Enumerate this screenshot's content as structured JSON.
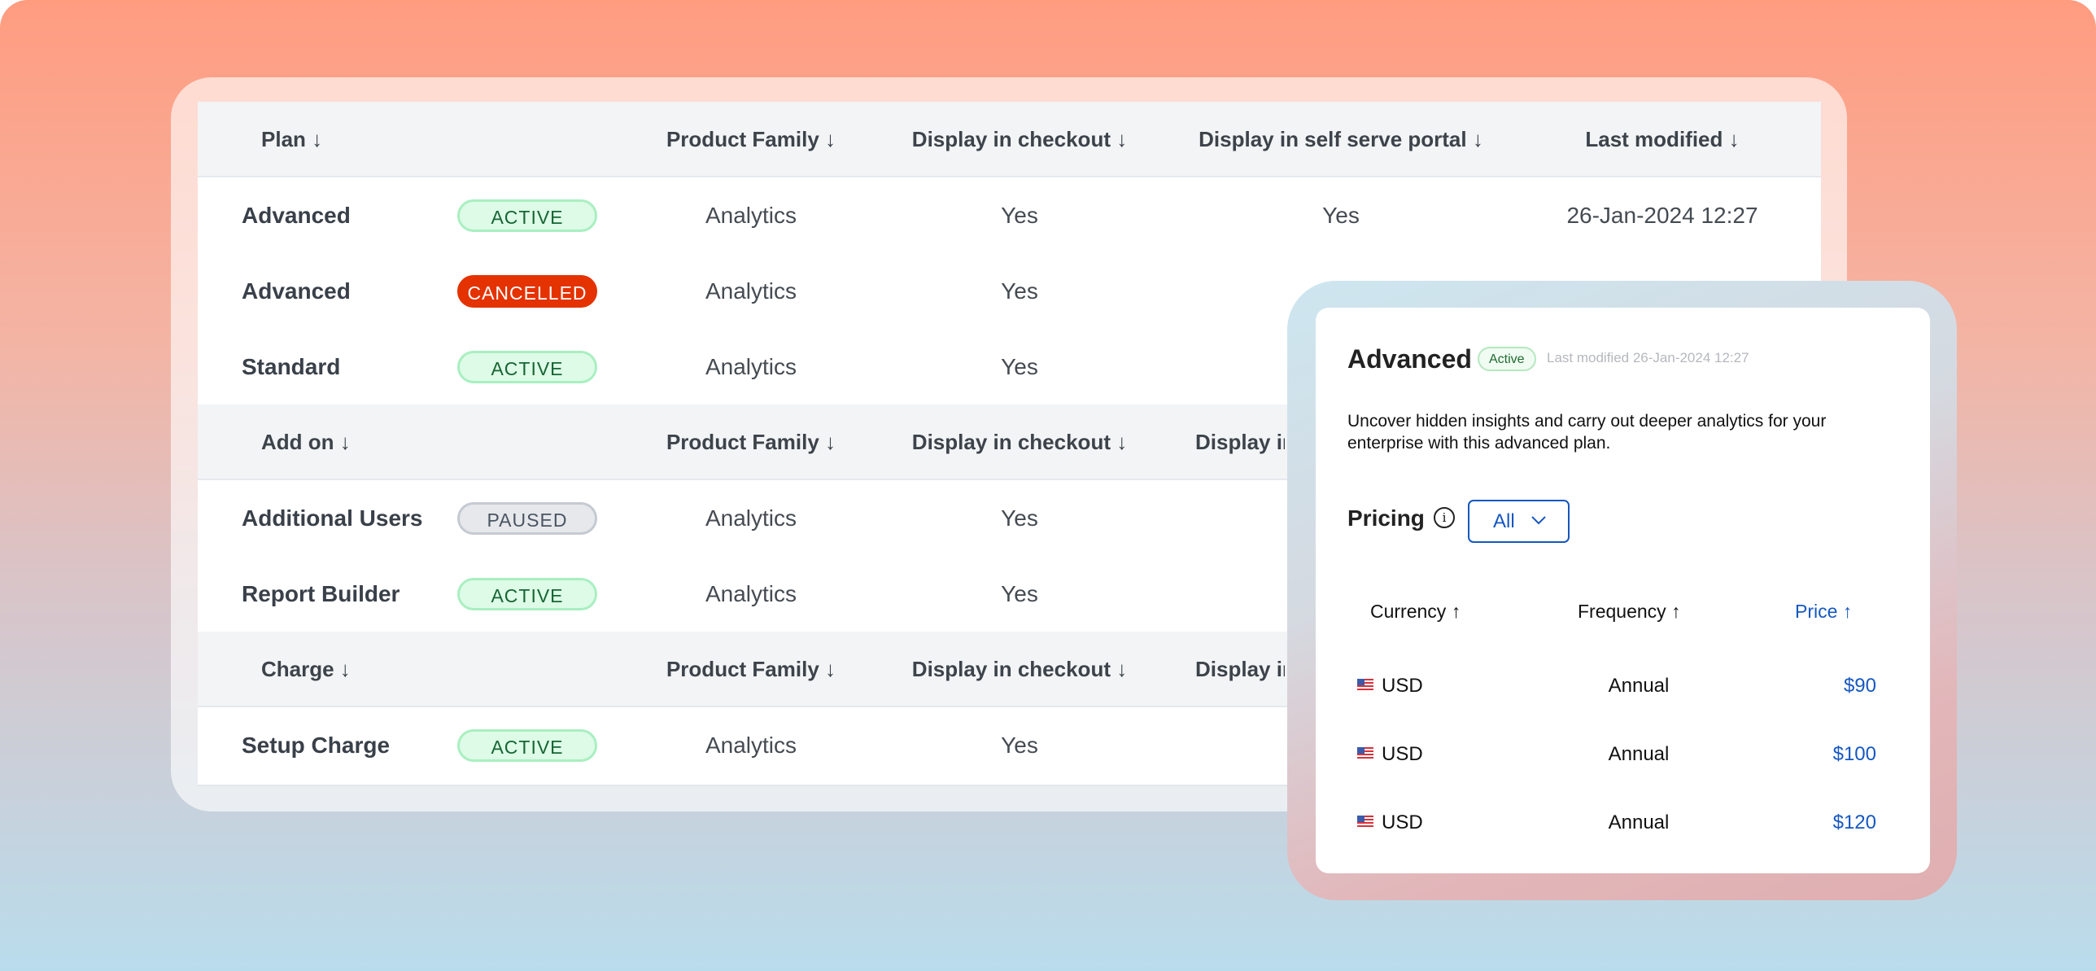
{
  "colors": {
    "active_bg": "#DDFBE6",
    "cancelled_bg": "#E43200",
    "paused_bg": "#E6E8EB",
    "accent": "#1657C0"
  },
  "table": {
    "sections": [
      {
        "header": {
          "name": "Plan ↓",
          "product_family": "Product Family ↓",
          "checkout": "Display in checkout ↓",
          "portal": "Display in self serve portal ↓",
          "last_modified": "Last modified ↓"
        },
        "rows": [
          {
            "name": "Advanced",
            "status": "ACTIVE",
            "status_kind": "active",
            "product_family": "Analytics",
            "checkout": "Yes",
            "portal": "Yes",
            "last_modified": "26-Jan-2024 12:27"
          },
          {
            "name": "Advanced",
            "status": "CANCELLED",
            "status_kind": "cancelled",
            "product_family": "Analytics",
            "checkout": "Yes"
          },
          {
            "name": "Standard",
            "status": "ACTIVE",
            "status_kind": "active",
            "product_family": "Analytics",
            "checkout": "Yes"
          }
        ]
      },
      {
        "header": {
          "name": "Add on ↓",
          "product_family": "Product Family ↓",
          "checkout": "Display in checkout ↓",
          "portal": "Display in self serve portal ↓"
        },
        "rows": [
          {
            "name": "Additional Users",
            "status": "PAUSED",
            "status_kind": "paused",
            "product_family": "Analytics",
            "checkout": "Yes"
          },
          {
            "name": "Report Builder",
            "status": "ACTIVE",
            "status_kind": "active",
            "product_family": "Analytics",
            "checkout": "Yes"
          }
        ]
      },
      {
        "header": {
          "name": "Charge ↓",
          "product_family": "Product Family ↓",
          "checkout": "Display in checkout ↓",
          "portal": "Display in self serve portal ↓"
        },
        "rows": [
          {
            "name": "Setup Charge",
            "status": "ACTIVE",
            "status_kind": "active",
            "product_family": "Analytics",
            "checkout": "Yes"
          }
        ]
      }
    ]
  },
  "detail": {
    "title": "Advanced",
    "status": "Active",
    "last_modified": "Last modified 26-Jan-2024 12:27",
    "description": "Uncover hidden insights and carry out deeper analytics for your enterprise with this advanced plan.",
    "pricing_label": "Pricing",
    "info_icon": "info-icon",
    "filter_value": "All",
    "columns": {
      "currency": "Currency ↑",
      "frequency": "Frequency ↑",
      "price": "Price ↑"
    },
    "prices": [
      {
        "flag": "us-flag-icon",
        "currency": "USD",
        "frequency": "Annual",
        "price": "$90"
      },
      {
        "flag": "us-flag-icon",
        "currency": "USD",
        "frequency": "Annual",
        "price": "$100"
      },
      {
        "flag": "us-flag-icon",
        "currency": "USD",
        "frequency": "Annual",
        "price": "$120"
      }
    ]
  }
}
